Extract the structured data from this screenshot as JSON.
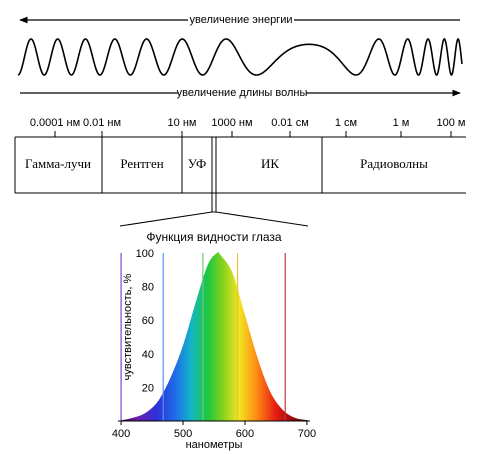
{
  "arrows": {
    "energy_label": "увеличение энергии",
    "wavelength_label": "увеличение длины волны"
  },
  "scale": {
    "ticks": [
      "0.0001 нм",
      "0.01 нм",
      "10 нм",
      "1000 нм",
      "0.01 см",
      "1 см",
      "1 м",
      "100 м"
    ]
  },
  "bands": [
    "Гамма-лучи",
    "Рентген",
    "УФ",
    "ИК",
    "Радиоволны"
  ],
  "zoom_link": "visible-light",
  "chart_data": {
    "type": "area",
    "title": "Функция видности глаза",
    "xlabel": "нанометры",
    "ylabel": "чувствительность, %",
    "xlim": [
      395,
      705
    ],
    "ylim": [
      0,
      100
    ],
    "xticks": [
      "400",
      "500",
      "600",
      "700"
    ],
    "yticks": [
      "20",
      "40",
      "60",
      "80",
      "100"
    ],
    "fill": "visible spectrum gradient (violet → blue → green → yellow → red)",
    "vertical_lines": [
      {
        "x": 400,
        "color": "#8a3fd1"
      },
      {
        "x": 468,
        "color": "#5a8ef0"
      },
      {
        "x": 532,
        "color": "#6fc86a"
      },
      {
        "x": 588,
        "color": "#e8c23a"
      },
      {
        "x": 665,
        "color": "#c2363a"
      }
    ],
    "series": [
      {
        "x": [
          395,
          420,
          440,
          460,
          480,
          500,
          520,
          540,
          555,
          560,
          580,
          600,
          620,
          640,
          660,
          680,
          700,
          705
        ],
        "values": [
          0,
          2,
          5,
          12,
          26,
          45,
          70,
          93,
          100,
          99,
          88,
          63,
          38,
          18,
          7,
          2,
          0.5,
          0
        ]
      }
    ]
  }
}
